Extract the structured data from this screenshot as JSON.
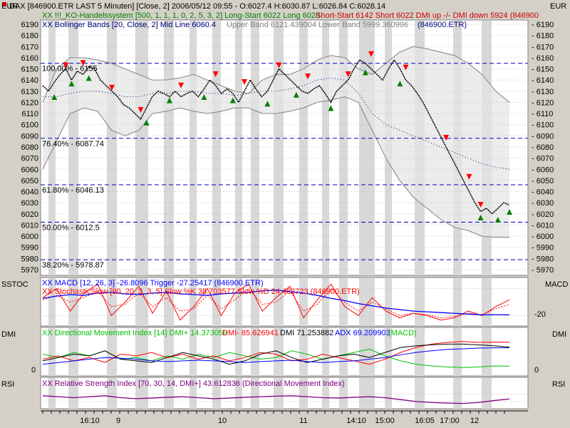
{
  "header": {
    "title": "DAX [846900.ETR LAST 5 Minuten] [Close, 2] 2006/05/12 09:55 - O:6027.4 H:6030.87 L:6026.84 C:6028.14",
    "line2_a": "XX !!!_KO-Handelssystem [500, 1, 1, 1, 0, 2, 5, 3, 2] Long-Start 6022 Long 6028",
    "line2_b": "Short-Start 6142 Short 6022 DMI up -/- DMI down 5924 (846900",
    "line3_a": "XX Bollinger Bands [20, Close, 2] Mid Line 6060.4",
    "line3_b": "Upper Band 6121.439004 Lower Band 5999.360996",
    "line3_c": "(846900.ETR)",
    "currency_left": "EUR",
    "currency_right": "EUR"
  },
  "panels": {
    "ssto_label": "SSTOC",
    "macd_label": "MACD",
    "macd_line": "XX MACD [12, 26, 3] -26.8096 Trigger -27.25417 (846900.ETR)",
    "sto_line": "XX StochasticSlow [80, 20, 3, 3, 5] Slow %K 38.703577 Slow %D 24.462723 (846900.ETR)",
    "macd_tick": "-20",
    "dmi_label": "DMI",
    "dmi_line_a": "XX Directional Movement Index [14] DMI+ 14.373059",
    "dmi_line_b": "DMI- 85.626941",
    "dmi_line_c": "DMI 71.253882",
    "dmi_line_d": "ADX 69.209903",
    "dmi_line_e": "(MACD)",
    "dmi_tick": "0",
    "rsi_label": "RSI",
    "rsi_line": "XX Relative Strength Index [70, 30, 14, DMI+] 43.612836 (Directional Movement Index)"
  },
  "x_labels": [
    "16:10",
    "9",
    "10",
    "11",
    "14:10",
    "15:00",
    "16:05",
    "17:00",
    "12"
  ],
  "colors": {
    "price": "#000000",
    "long_signal": "#008000",
    "short_signal": "#ff0000",
    "fib": "#0000c8",
    "macd": "#0000ff",
    "stochastic": "#ff0000",
    "dmi_plus": "#00c000",
    "dmi_minus": "#ff0000",
    "adx": "#0000ff",
    "rsi": "#800080",
    "band": "#808080"
  },
  "chart_data": {
    "type": "line",
    "y_axis": {
      "range": [
        5970,
        6190
      ],
      "ticks": [
        6190,
        6180,
        6170,
        6160,
        6150,
        6140,
        6130,
        6120,
        6110,
        6100,
        6090,
        6080,
        6070,
        6060,
        6050,
        6040,
        6030,
        6020,
        6010,
        6000,
        5990,
        5980,
        5970
      ]
    },
    "fib_levels": [
      {
        "value": 6155,
        "label": "100.00% - 6155"
      },
      {
        "value": 6087.74,
        "label": "76.40% - 6087.74"
      },
      {
        "value": 6046.13,
        "label": "61.80% - 6046.13"
      },
      {
        "value": 6012.5,
        "label": "50.00% - 6012.5"
      },
      {
        "value": 5978.87,
        "label": "38.20% - 5978.87"
      }
    ],
    "price": [
      6135,
      6130,
      6138,
      6145,
      6150,
      6140,
      6148,
      6145,
      6152,
      6150,
      6140,
      6135,
      6130,
      6125,
      6118,
      6115,
      6110,
      6105,
      6115,
      6125,
      6130,
      6128,
      6125,
      6130,
      6125,
      6128,
      6130,
      6125,
      6132,
      6140,
      6135,
      6128,
      6132,
      6128,
      6120,
      6130,
      6140,
      6132,
      6125,
      6130,
      6140,
      6150,
      6145,
      6140,
      6135,
      6130,
      6128,
      6132,
      6135,
      6128,
      6120,
      6130,
      6135,
      6140,
      6150,
      6158,
      6155,
      6150,
      6145,
      6140,
      6150,
      6158,
      6150,
      6140,
      6135,
      6128,
      6120,
      6110,
      6100,
      6090,
      6080,
      6070,
      6060,
      6050,
      6040,
      6030,
      6022,
      6025,
      6020,
      6025,
      6030,
      6028
    ],
    "bb_upper": [
      6120,
      6150,
      6160,
      6160,
      6158,
      6155,
      6150,
      6145,
      6140,
      6140,
      6142,
      6145,
      6140,
      6135,
      6130,
      6128,
      6140,
      6145,
      6145,
      6150,
      6158,
      6162,
      6160,
      6150,
      6145,
      6155,
      6165,
      6170,
      6168,
      6165,
      6162,
      6155,
      6145,
      6130,
      6120
    ],
    "bb_lower": [
      6060,
      6085,
      6110,
      6115,
      6112,
      6095,
      6090,
      6095,
      6110,
      6112,
      6115,
      6112,
      6110,
      6112,
      6115,
      6115,
      6110,
      6110,
      6112,
      6115,
      6120,
      6122,
      6125,
      6120,
      6095,
      6070,
      6050,
      6035,
      6025,
      6015,
      6008,
      6005,
      6000,
      5999,
      5999
    ],
    "bb_mid": [
      6125,
      6125,
      6128,
      6130,
      6130,
      6128,
      6125,
      6125,
      6128,
      6128,
      6130,
      6130,
      6128,
      6128,
      6126,
      6128,
      6130,
      6130,
      6132,
      6135,
      6140,
      6142,
      6140,
      6128,
      6110,
      6100,
      6095,
      6090,
      6085,
      6080,
      6075,
      6070,
      6065,
      6062,
      6060
    ],
    "long_signals": [
      [
        2,
        6128
      ],
      [
        5,
        6140
      ],
      [
        8,
        6145
      ],
      [
        18,
        6105
      ],
      [
        22,
        6125
      ],
      [
        28,
        6128
      ],
      [
        33,
        6125
      ],
      [
        39,
        6122
      ],
      [
        44,
        6130
      ],
      [
        50,
        6118
      ],
      [
        56,
        6150
      ],
      [
        62,
        6140
      ],
      [
        76,
        6020
      ],
      [
        79,
        6018
      ],
      [
        81,
        6025
      ]
    ],
    "short_signals": [
      [
        4,
        6150
      ],
      [
        7,
        6152
      ],
      [
        12,
        6130
      ],
      [
        17,
        6110
      ],
      [
        24,
        6132
      ],
      [
        30,
        6142
      ],
      [
        35,
        6135
      ],
      [
        41,
        6150
      ],
      [
        46,
        6140
      ],
      [
        53,
        6142
      ],
      [
        57,
        6160
      ],
      [
        63,
        6148
      ],
      [
        70,
        6085
      ],
      [
        74,
        6050
      ],
      [
        76,
        6025
      ]
    ],
    "ssto_range": [
      0,
      100
    ],
    "macd_range": [
      -40,
      20
    ],
    "stochastic": [
      60,
      80,
      30,
      70,
      90,
      20,
      50,
      85,
      25,
      75,
      10,
      40,
      80,
      20,
      70,
      90,
      30,
      60,
      85,
      15,
      55,
      90,
      40,
      20,
      60,
      30,
      15,
      25,
      20,
      10,
      15,
      30,
      20,
      40,
      55
    ],
    "stochastic_d": [
      55,
      65,
      50,
      60,
      75,
      40,
      45,
      70,
      40,
      60,
      30,
      35,
      65,
      35,
      55,
      80,
      45,
      50,
      75,
      30,
      45,
      80,
      50,
      30,
      50,
      35,
      20,
      25,
      22,
      15,
      18,
      25,
      22,
      35,
      45
    ],
    "macd": [
      -5,
      -2,
      0,
      -1,
      2,
      3,
      1,
      0,
      2,
      3,
      1,
      0,
      -1,
      1,
      2,
      3,
      5,
      6,
      4,
      2,
      -1,
      -5,
      -8,
      -12,
      -15,
      -18,
      -20,
      -22,
      -23,
      -24,
      -25,
      -26,
      -27,
      -26.8,
      -27
    ],
    "dmi_range": [
      0,
      100
    ],
    "dmi_plus": [
      50,
      40,
      55,
      45,
      60,
      35,
      40,
      30,
      45,
      35,
      50,
      40,
      55,
      45,
      35,
      40,
      60,
      50,
      35,
      45,
      55,
      65,
      45,
      30,
      20,
      15,
      12,
      10,
      12,
      15,
      14
    ],
    "dmi_minus": [
      35,
      45,
      30,
      40,
      25,
      50,
      45,
      55,
      40,
      50,
      35,
      45,
      30,
      40,
      55,
      50,
      30,
      35,
      50,
      40,
      30,
      20,
      35,
      55,
      70,
      80,
      85,
      88,
      85,
      86,
      85.6
    ],
    "dmi_line": [
      30,
      40,
      50,
      45,
      60,
      35,
      30,
      25,
      40,
      55,
      45,
      35,
      20,
      30,
      50,
      60,
      40,
      25,
      35,
      45,
      50,
      40,
      55,
      70,
      75,
      78,
      80,
      80,
      78,
      75,
      71
    ],
    "adx": [
      20,
      25,
      30,
      35,
      40,
      38,
      35,
      30,
      28,
      30,
      32,
      30,
      28,
      25,
      28,
      30,
      32,
      28,
      25,
      28,
      30,
      35,
      40,
      48,
      55,
      60,
      64,
      66,
      68,
      69,
      69.2
    ],
    "rsi_range": [
      0,
      100
    ],
    "rsi": [
      60,
      55,
      50,
      55,
      60,
      50,
      45,
      48,
      52,
      55,
      50,
      45,
      48,
      52,
      55,
      58,
      60,
      55,
      50,
      48,
      52,
      55,
      50,
      40,
      30,
      25,
      22,
      20,
      25,
      35,
      43.6
    ]
  }
}
